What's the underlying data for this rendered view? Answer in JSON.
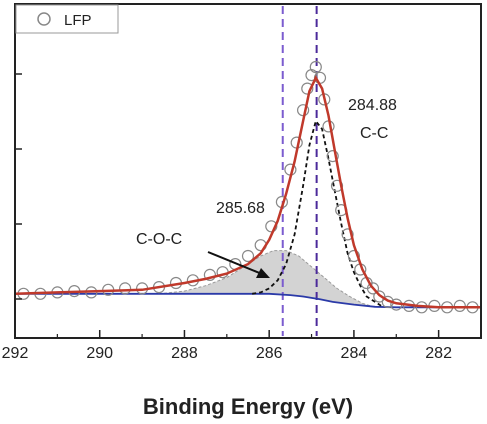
{
  "chart_data": {
    "type": "line",
    "xlabel": "Binding Energy (eV)",
    "ylabel": "",
    "xlim": [
      292,
      281
    ],
    "ylim": [
      0,
      1
    ],
    "x_reversed": true,
    "x_ticks": [
      292,
      290,
      288,
      286,
      284,
      282
    ],
    "y_ticks_labeled": false,
    "legend": {
      "placement": "top-left",
      "entries": [
        "LFP"
      ]
    },
    "vertical_lines": [
      {
        "x": 285.68,
        "style": "dashed",
        "color": "#7b5ccf"
      },
      {
        "x": 284.88,
        "style": "dashed",
        "color": "#4b2a9a"
      }
    ],
    "annotations": [
      {
        "text": "284.88",
        "x": 283.8,
        "y": 0.75
      },
      {
        "text": "C-C",
        "x": 283.8,
        "y": 0.66
      },
      {
        "text": "285.68",
        "x": 286.8,
        "y": 0.42
      },
      {
        "text": "C-O-C",
        "x": 288.6,
        "y": 0.3
      }
    ],
    "arrow": {
      "from": [
        287.0,
        0.23
      ],
      "to": [
        285.9,
        0.13
      ]
    },
    "colors": {
      "fit": "#c0392b",
      "background": "#2b3aa8",
      "cc_component": "#111111",
      "coc_fill": "#d3d3d3",
      "markers": "#888888"
    },
    "series": [
      {
        "name": "LFP",
        "kind": "scatter",
        "x": [
          291.8,
          291.4,
          291.0,
          290.6,
          290.2,
          289.8,
          289.4,
          289.0,
          288.6,
          288.2,
          287.8,
          287.4,
          287.1,
          286.8,
          286.5,
          286.2,
          285.95,
          285.7,
          285.5,
          285.35,
          285.2,
          285.1,
          285.0,
          284.9,
          284.8,
          284.7,
          284.6,
          284.5,
          284.4,
          284.3,
          284.15,
          284.0,
          283.85,
          283.7,
          283.55,
          283.4,
          283.2,
          283.0,
          282.7,
          282.4,
          282.1,
          281.8,
          281.5,
          281.2
        ],
        "y": [
          0.06,
          0.06,
          0.065,
          0.07,
          0.065,
          0.075,
          0.08,
          0.08,
          0.085,
          0.1,
          0.11,
          0.13,
          0.14,
          0.17,
          0.2,
          0.24,
          0.31,
          0.4,
          0.52,
          0.62,
          0.74,
          0.82,
          0.87,
          0.9,
          0.86,
          0.78,
          0.68,
          0.57,
          0.46,
          0.37,
          0.28,
          0.2,
          0.15,
          0.1,
          0.08,
          0.05,
          0.03,
          0.02,
          0.015,
          0.01,
          0.015,
          0.01,
          0.015,
          0.01
        ]
      },
      {
        "name": "",
        "kind": "fit",
        "x": [
          292.0,
          291.0,
          290.0,
          289.0,
          288.0,
          287.5,
          287.0,
          286.5,
          286.2,
          286.0,
          285.8,
          285.6,
          285.4,
          285.2,
          285.05,
          284.9,
          284.75,
          284.6,
          284.45,
          284.3,
          284.15,
          284.0,
          283.8,
          283.6,
          283.4,
          283.2,
          283.0,
          282.5,
          282.0,
          281.0
        ],
        "y": [
          0.06,
          0.065,
          0.07,
          0.075,
          0.1,
          0.115,
          0.135,
          0.17,
          0.21,
          0.26,
          0.33,
          0.43,
          0.55,
          0.7,
          0.81,
          0.86,
          0.82,
          0.72,
          0.59,
          0.46,
          0.34,
          0.24,
          0.15,
          0.09,
          0.055,
          0.035,
          0.025,
          0.015,
          0.01,
          0.01
        ]
      },
      {
        "name": "",
        "kind": "background",
        "x": [
          292.0,
          290.0,
          288.0,
          287.0,
          286.0,
          285.5,
          285.2,
          285.0,
          284.8,
          284.5,
          284.0,
          283.5,
          283.0,
          282.0,
          281.0
        ],
        "y": [
          0.06,
          0.06,
          0.06,
          0.06,
          0.06,
          0.055,
          0.05,
          0.045,
          0.04,
          0.03,
          0.02,
          0.012,
          0.01,
          0.01,
          0.01
        ]
      },
      {
        "name": "",
        "kind": "component-dashed",
        "x": [
          286.4,
          286.2,
          286.0,
          285.8,
          285.6,
          285.4,
          285.2,
          285.05,
          284.9,
          284.75,
          284.6,
          284.45,
          284.3,
          284.15,
          284.0,
          283.85,
          283.7,
          283.5,
          283.3
        ],
        "y": [
          0.06,
          0.065,
          0.08,
          0.11,
          0.17,
          0.28,
          0.46,
          0.61,
          0.7,
          0.67,
          0.56,
          0.44,
          0.32,
          0.21,
          0.14,
          0.09,
          0.05,
          0.03,
          0.01
        ]
      },
      {
        "name": "",
        "kind": "component-filled",
        "x": [
          288.6,
          288.0,
          287.5,
          287.0,
          286.6,
          286.2,
          285.9,
          285.6,
          285.3,
          285.0,
          284.7,
          284.4,
          284.1,
          283.8,
          283.5
        ],
        "y": [
          0.06,
          0.07,
          0.09,
          0.12,
          0.16,
          0.2,
          0.22,
          0.22,
          0.2,
          0.16,
          0.12,
          0.08,
          0.05,
          0.025,
          0.01
        ]
      }
    ]
  }
}
